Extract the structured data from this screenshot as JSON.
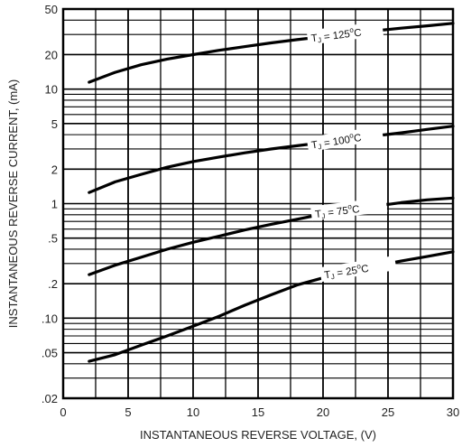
{
  "chart_data": {
    "type": "line",
    "xlabel": "INSTANTANEOUS REVERSE VOLTAGE, (V)",
    "ylabel": "INSTANTANEOUS REVERSE CURRENT, (mA)",
    "x_scale": "linear",
    "y_scale": "log",
    "xlim": [
      0,
      30
    ],
    "ylim": [
      0.02,
      50
    ],
    "grid": true,
    "x_ticks": [
      0,
      5,
      10,
      15,
      20,
      25,
      30
    ],
    "x_tick_labels": [
      "0",
      "5",
      "10",
      "15",
      "20",
      "25",
      "30"
    ],
    "y_ticks": [
      0.02,
      0.05,
      0.1,
      0.2,
      0.5,
      1,
      2,
      5,
      10,
      20,
      50
    ],
    "y_tick_labels": [
      ".02",
      ".05",
      ".10",
      ".2",
      ".5",
      "1",
      "2",
      "5",
      "10",
      "20",
      "50"
    ],
    "series": [
      {
        "label": "TJ = 125°C",
        "label_parts": {
          "t": "T",
          "sub": "J",
          "eq": " = 125",
          "sup": "o",
          "unit": "C"
        },
        "x": [
          2,
          4,
          6,
          8,
          10,
          12,
          14,
          16,
          18,
          20,
          22,
          24,
          26,
          28,
          30
        ],
        "y": [
          11.5,
          14,
          16.3,
          18.3,
          20,
          21.8,
          23.5,
          25.3,
          27,
          28.7,
          30.5,
          32.3,
          34,
          35.7,
          37.5
        ]
      },
      {
        "label": "TJ = 100°C",
        "label_parts": {
          "t": "T",
          "sub": "J",
          "eq": " = 100",
          "sup": "o",
          "unit": "C"
        },
        "x": [
          2,
          4,
          6,
          8,
          10,
          12,
          14,
          16,
          18,
          20,
          22,
          24,
          26,
          28,
          30
        ],
        "y": [
          1.25,
          1.55,
          1.8,
          2.08,
          2.33,
          2.55,
          2.78,
          3.0,
          3.2,
          3.42,
          3.65,
          3.9,
          4.15,
          4.45,
          4.75
        ]
      },
      {
        "label": "TJ = 75°C",
        "label_parts": {
          "t": "T",
          "sub": "J",
          "eq": " = 75",
          "sup": "o",
          "unit": "C"
        },
        "x": [
          2,
          4,
          6,
          8,
          10,
          12,
          14,
          16,
          18,
          20,
          22,
          24,
          26,
          28,
          30
        ],
        "y": [
          0.24,
          0.29,
          0.34,
          0.4,
          0.46,
          0.52,
          0.59,
          0.66,
          0.73,
          0.81,
          0.88,
          0.95,
          1.02,
          1.08,
          1.12
        ]
      },
      {
        "label": "TJ = 25°C",
        "label_parts": {
          "t": "T",
          "sub": "J",
          "eq": " = 25",
          "sup": "o",
          "unit": "C"
        },
        "x": [
          2,
          4,
          6,
          8,
          10,
          12,
          14,
          16,
          18,
          20,
          22,
          24,
          26,
          28,
          30
        ],
        "y": [
          0.042,
          0.048,
          0.058,
          0.07,
          0.085,
          0.104,
          0.13,
          0.16,
          0.195,
          0.225,
          0.255,
          0.285,
          0.315,
          0.345,
          0.38
        ]
      }
    ]
  }
}
